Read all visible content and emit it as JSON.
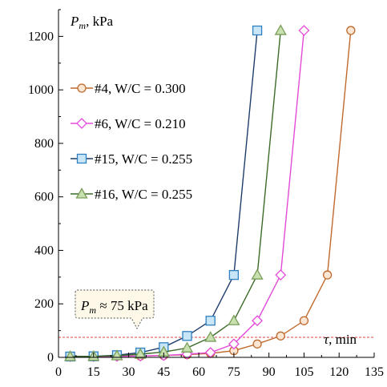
{
  "chart_data": {
    "type": "line",
    "title": "",
    "ylabel_symbol": "P",
    "ylabel_sub": "m",
    "ylabel_unit": ", kPa",
    "xlabel_symbol": "τ",
    "xlabel_unit": ", min",
    "xlim": [
      0,
      135
    ],
    "ylim": [
      0,
      1300
    ],
    "xticks": [
      0,
      15,
      30,
      45,
      60,
      75,
      90,
      105,
      120,
      135
    ],
    "yticks": [
      0,
      200,
      400,
      600,
      800,
      1000,
      1200
    ],
    "grid": false,
    "legend_position": "left-middle",
    "series": [
      {
        "name": "#4, W/C = 0.300",
        "marker": "circle",
        "color": "#c0692c",
        "fill": "#fbe5d3",
        "x": [
          5,
          15,
          25,
          35,
          45,
          55,
          65,
          75,
          85,
          95,
          105,
          115,
          125
        ],
        "y": [
          3,
          3,
          4,
          5,
          7,
          10,
          15,
          25,
          50,
          80,
          137,
          308,
          1222
        ]
      },
      {
        "name": "#6, W/C = 0.210",
        "marker": "diamond",
        "color": "#e34ad8",
        "fill": "#ffffff",
        "x": [
          5,
          15,
          25,
          35,
          45,
          55,
          65,
          75,
          85,
          95,
          105
        ],
        "y": [
          3,
          3,
          4,
          5,
          7,
          12,
          18,
          50,
          137,
          308,
          1222
        ]
      },
      {
        "name": "#15, W/C = 0.255",
        "marker": "square",
        "color": "#1f3d6b",
        "fill": "#c8e6f8",
        "marker_stroke": "#2f80c0",
        "x": [
          5,
          15,
          25,
          35,
          45,
          55,
          65,
          75,
          85
        ],
        "y": [
          3,
          4,
          8,
          18,
          38,
          80,
          137,
          308,
          1222
        ]
      },
      {
        "name": "#16, W/C = 0.255",
        "marker": "triangle",
        "color": "#3d6b2a",
        "fill": "#c8e0b0",
        "marker_stroke": "#7a9e5a",
        "x": [
          5,
          15,
          25,
          35,
          45,
          55,
          65,
          75,
          85,
          95
        ],
        "y": [
          3,
          4,
          6,
          12,
          20,
          35,
          75,
          137,
          308,
          1222
        ]
      }
    ],
    "reference_line": {
      "y": 75,
      "color": "#e04040",
      "style": "dashed"
    },
    "annotation": {
      "symbol": "P",
      "sub": "m",
      "text": " ≈ 75 kPa"
    }
  }
}
